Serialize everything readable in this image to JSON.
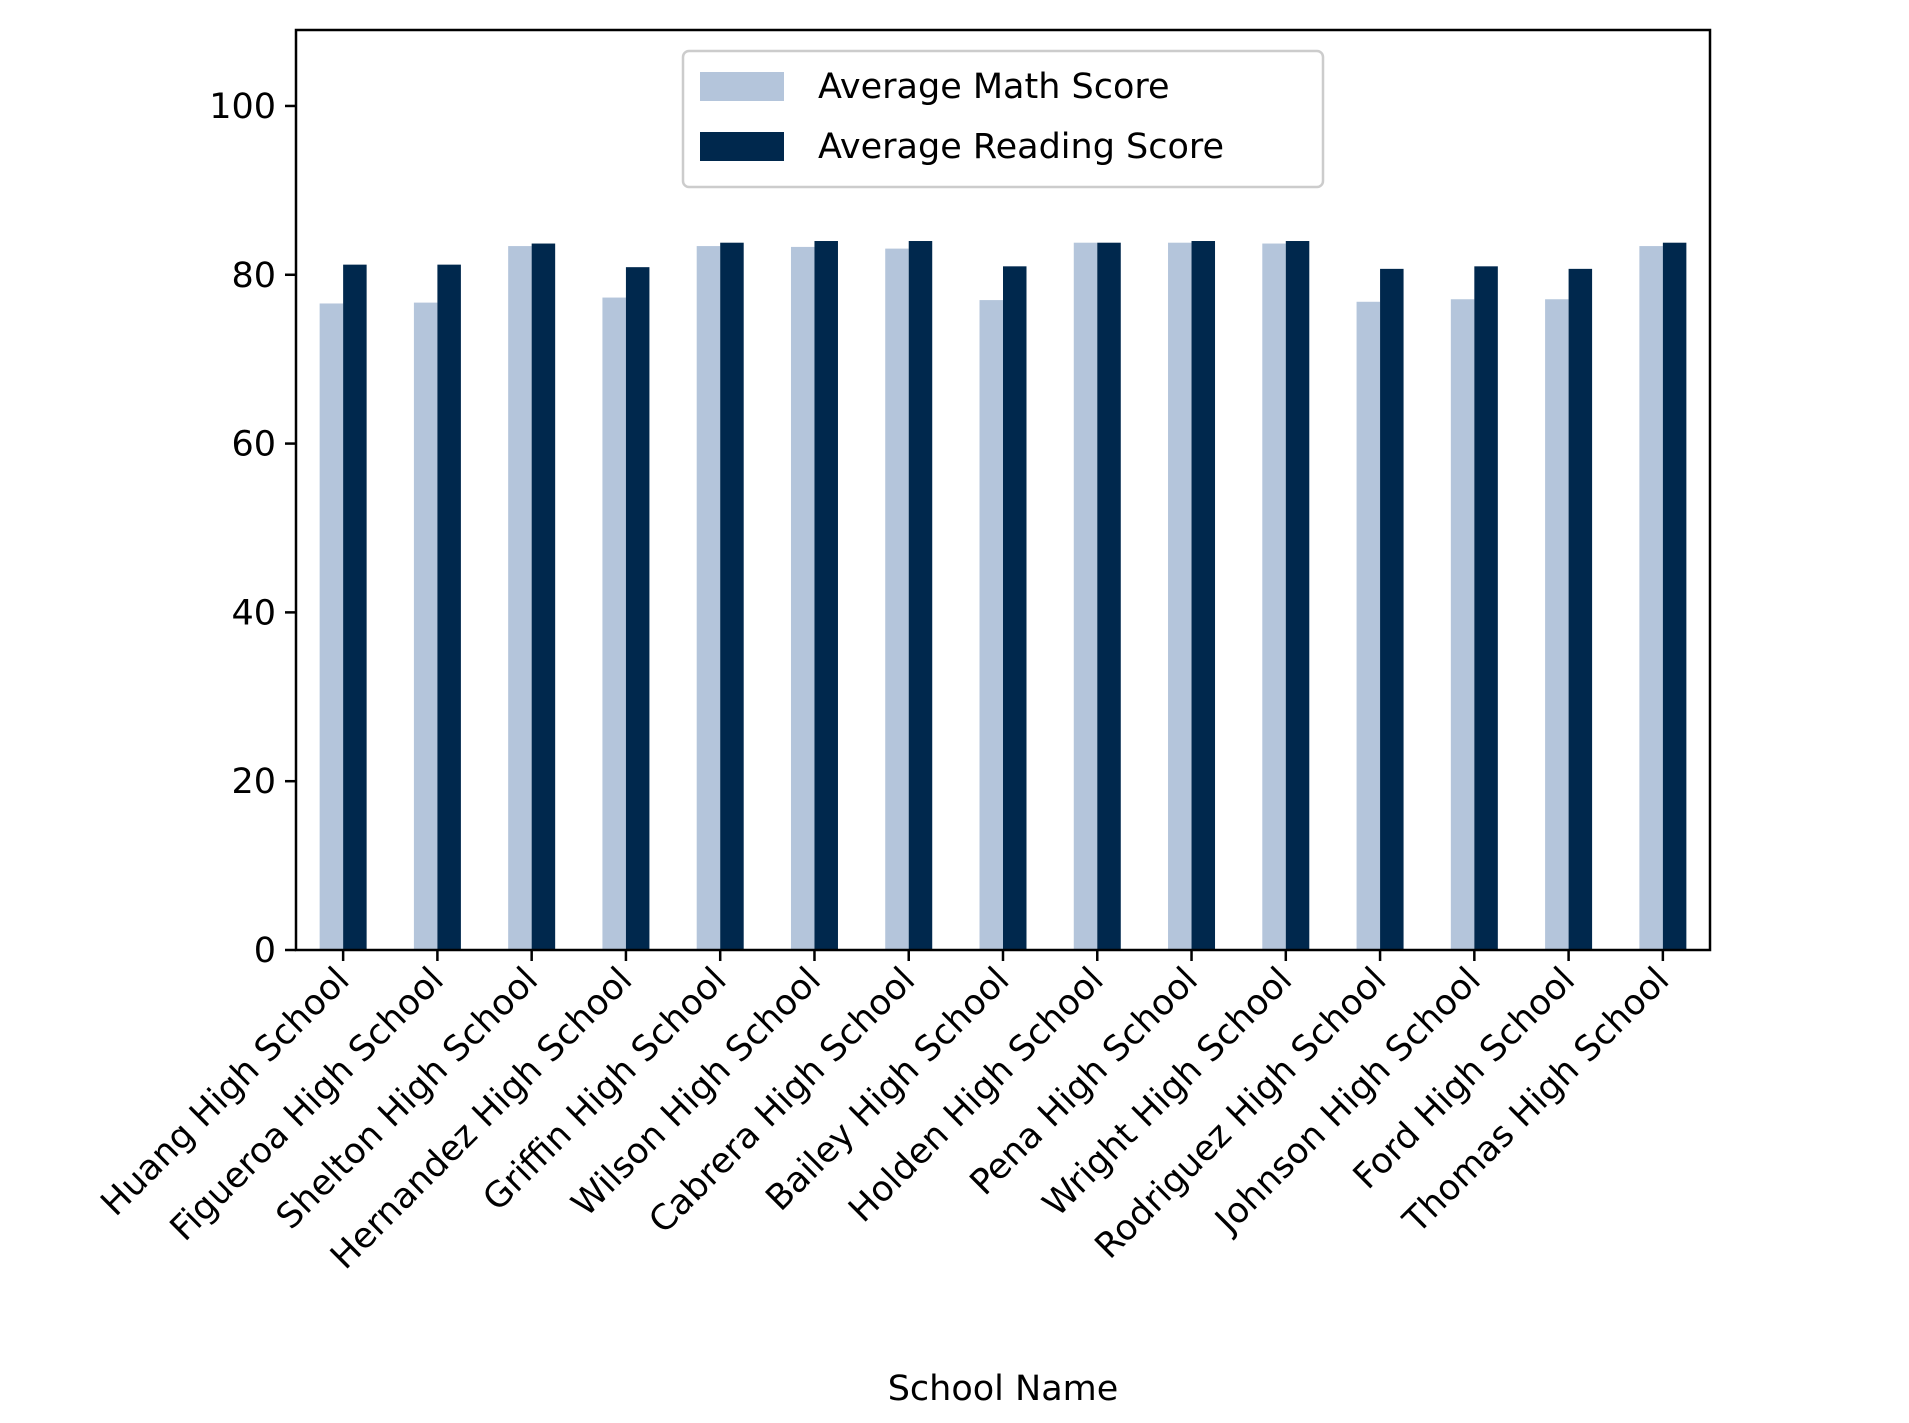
{
  "chart_data": {
    "type": "bar",
    "title": "",
    "xlabel": "School Name",
    "ylabel": "",
    "ylim": [
      0,
      109
    ],
    "yticks": [
      0,
      20,
      40,
      60,
      80,
      100
    ],
    "grid": false,
    "legend_position": "top-center",
    "categories": [
      "Huang High School",
      "Figueroa High School",
      "Shelton High School",
      "Hernandez High School",
      "Griffin High School",
      "Wilson High School",
      "Cabrera High School",
      "Bailey High School",
      "Holden High School",
      "Pena High School",
      "Wright High School",
      "Rodriguez High School",
      "Johnson High School",
      "Ford High School",
      "Thomas High School"
    ],
    "series": [
      {
        "name": "Average Math Score",
        "color": "#b4c5db",
        "values": [
          76.6,
          76.7,
          83.4,
          77.3,
          83.4,
          83.3,
          83.1,
          77.0,
          83.8,
          83.8,
          83.7,
          76.8,
          77.1,
          77.1,
          83.4
        ]
      },
      {
        "name": "Average Reading Score",
        "color": "#00284d",
        "values": [
          81.2,
          81.2,
          83.7,
          80.9,
          83.8,
          84.0,
          84.0,
          81.0,
          83.8,
          84.0,
          84.0,
          80.7,
          81.0,
          80.7,
          83.8
        ]
      }
    ]
  }
}
